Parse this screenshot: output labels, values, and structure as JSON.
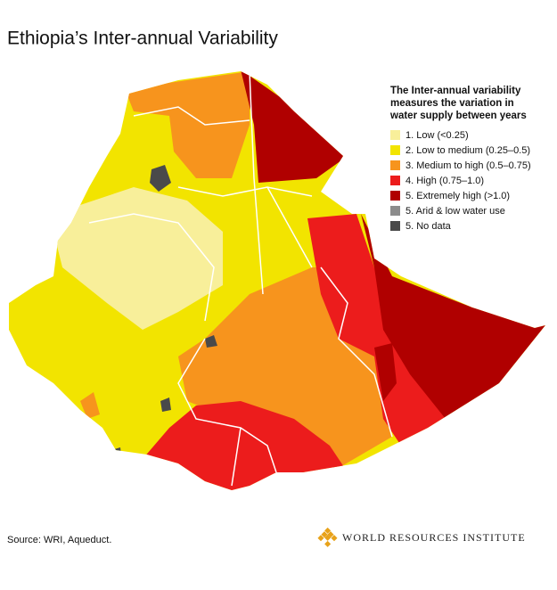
{
  "title": "Ethiopia’s Inter-annual Variability",
  "legend": {
    "title_lines": [
      "The Inter-annual variability",
      "measures the variation in",
      "water supply between years"
    ],
    "items": [
      {
        "label": "1. Low (<0.25)",
        "color": "#f8ef9a"
      },
      {
        "label": "2. Low to medium (0.25–0.5)",
        "color": "#f2e400"
      },
      {
        "label": "3. Medium to high (0.5–0.75)",
        "color": "#f7941d"
      },
      {
        "label": "4. High (0.75–1.0)",
        "color": "#ec1c1c"
      },
      {
        "label": "5. Extremely high (>1.0)",
        "color": "#b00000"
      },
      {
        "label": "5. Arid & low water use",
        "color": "#8c8c8c"
      },
      {
        "label": "5. No data",
        "color": "#4a4a4a"
      }
    ]
  },
  "source": "Source: WRI, Aqueduct.",
  "logo": "WORLD RESOURCES INSTITUTE"
}
